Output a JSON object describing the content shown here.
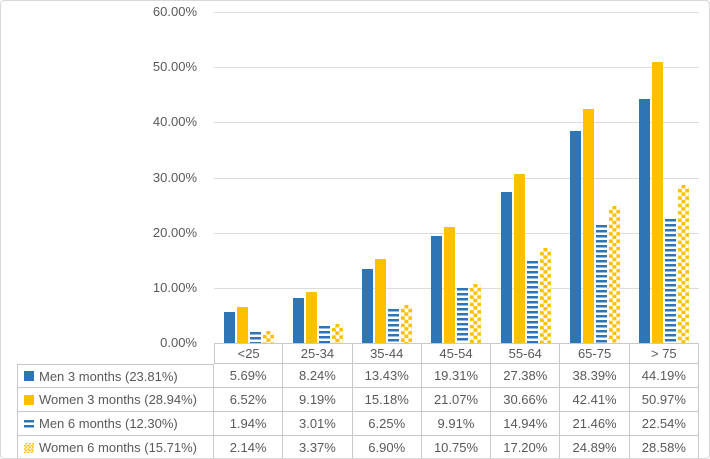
{
  "figure": {
    "kind": "clustered-column-chart-with-data-table",
    "title": ""
  },
  "colors": {
    "series_blue": "#2E75B6",
    "series_yellow": "#FFC000",
    "text": "#595959",
    "gridline": "#DCDCDC",
    "table_border": "#C9C9C9",
    "background": "#FFFFFF"
  },
  "y_axis": {
    "ticks": [
      "60.00%",
      "50.00%",
      "40.00%",
      "30.00%",
      "20.00%",
      "10.00%",
      "0.00%"
    ]
  },
  "chart_data": {
    "type": "bar",
    "title": "",
    "xlabel": "",
    "ylabel": "",
    "ylim": [
      0,
      60
    ],
    "grid": true,
    "legend_position": "table-left",
    "value_format": "percent-2dp",
    "categories": [
      "<25",
      "25-34",
      "35-44",
      "45-54",
      "55-64",
      "65-75",
      "> 75"
    ],
    "series": [
      {
        "name": "Men 3 months (23.81%)",
        "color": "#2E75B6",
        "pattern": "solid",
        "values": [
          5.69,
          8.24,
          13.43,
          19.31,
          27.38,
          38.39,
          44.19
        ]
      },
      {
        "name": "Women 3 months (28.94%)",
        "color": "#FFC000",
        "pattern": "solid",
        "values": [
          6.52,
          9.19,
          15.18,
          21.07,
          30.66,
          42.41,
          50.97
        ]
      },
      {
        "name": "Men 6 months (12.30%)",
        "color": "#2E75B6",
        "pattern": "hstripe",
        "values": [
          1.94,
          3.01,
          6.25,
          9.91,
          14.94,
          21.46,
          22.54
        ]
      },
      {
        "name": "Women 6 months (15.71%)",
        "color": "#FFC000",
        "pattern": "checker",
        "values": [
          2.14,
          3.37,
          6.9,
          10.75,
          17.2,
          24.89,
          28.58
        ]
      }
    ]
  }
}
